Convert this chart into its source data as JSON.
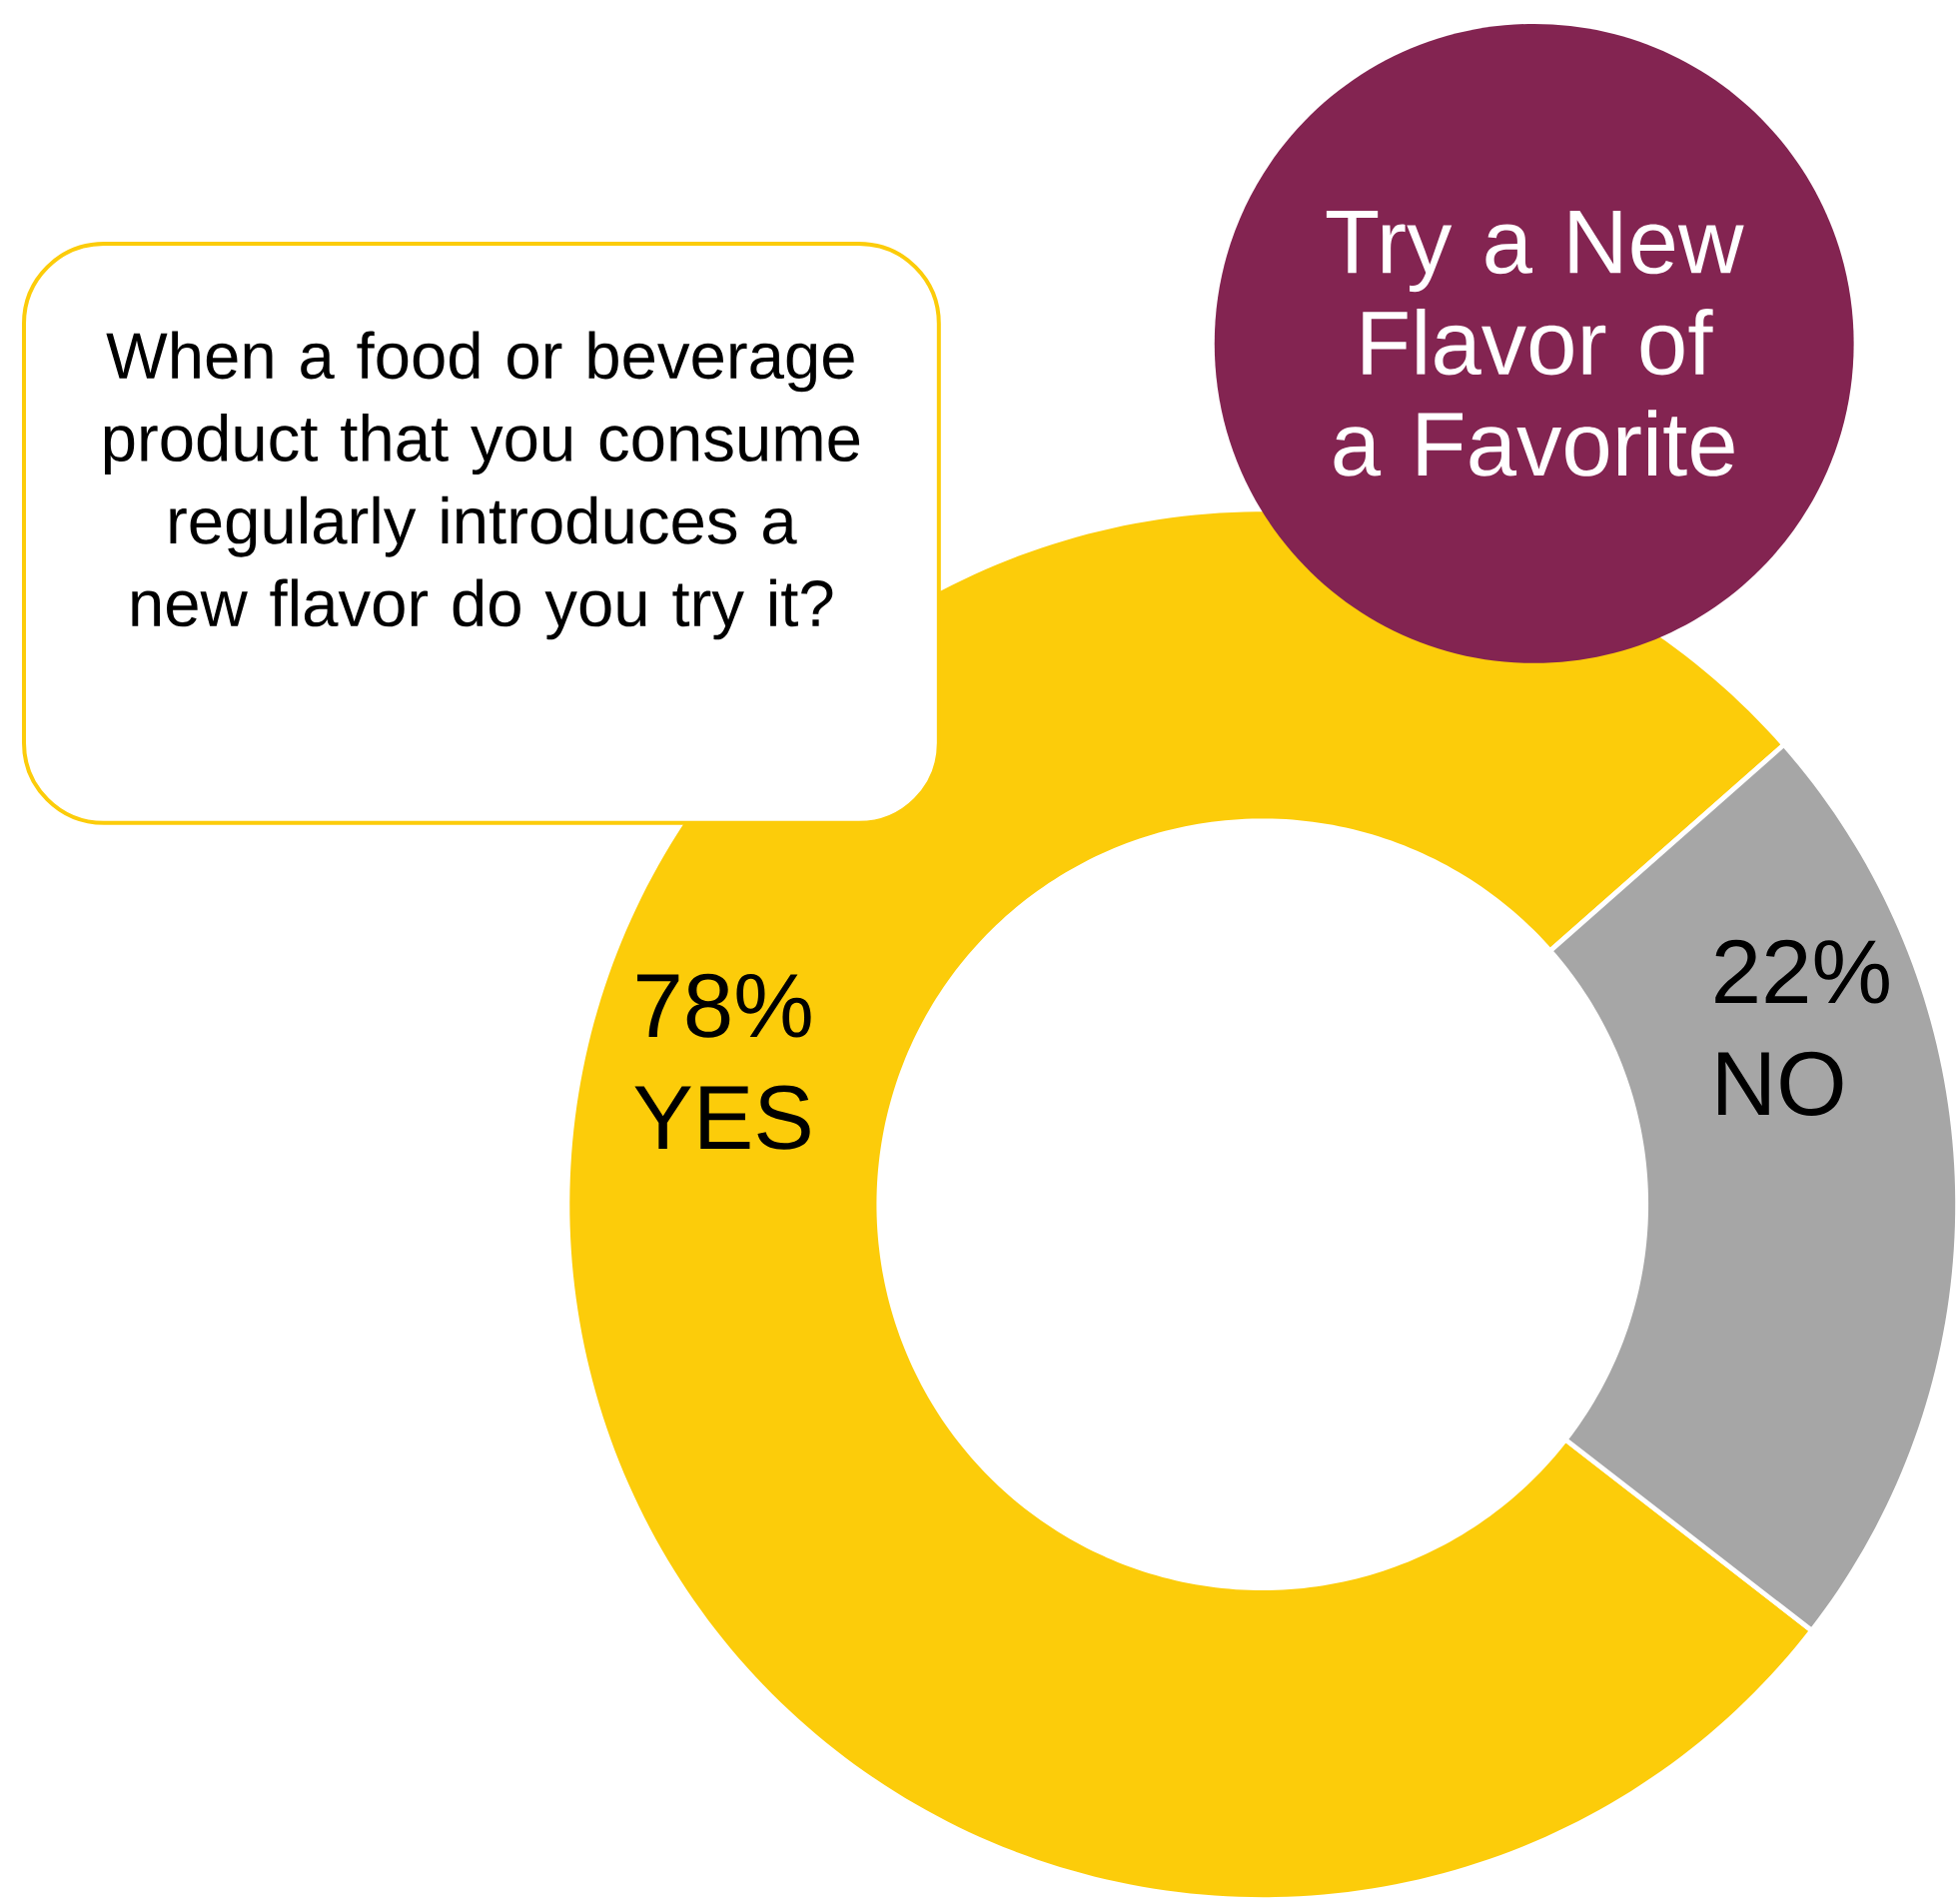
{
  "chart_data": {
    "type": "donut",
    "title": "Try a New Flavor of a Favorite",
    "subtitle": "When a food or beverage product that you consume regularly introduces a new flavor do you try it?",
    "categories": [
      "YES",
      "NO"
    ],
    "values": [
      78,
      22
    ],
    "colors": [
      "#fccc0a",
      "#a6a6a6"
    ],
    "value_labels": [
      "78%",
      "22%"
    ]
  }
}
